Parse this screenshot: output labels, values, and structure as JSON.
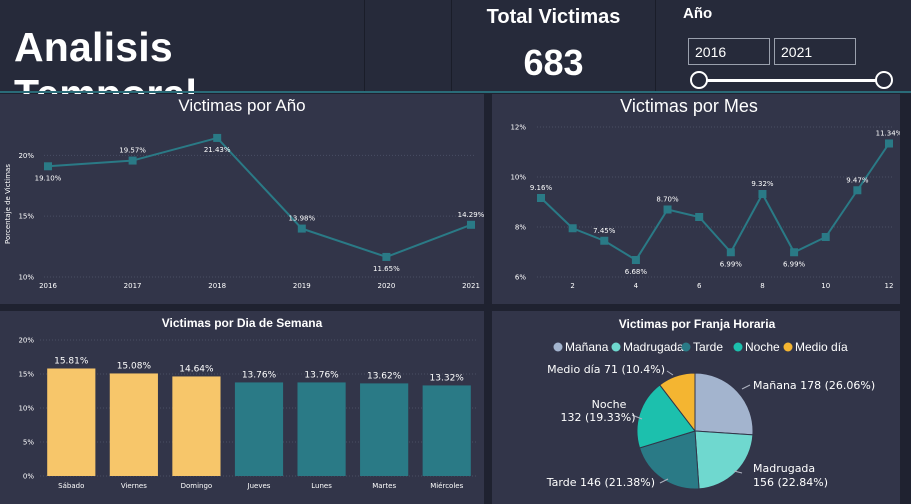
{
  "header": {
    "title": "Analisis Temporal",
    "kpi_label": "Total Victimas",
    "kpi_value": "683",
    "slicer": {
      "label": "Año",
      "from": "2016",
      "to": "2021"
    }
  },
  "charts": [
    {
      "id": "year",
      "type": "line",
      "title": "Victimas por Año",
      "ylabel": "Porcentaje de Victimas",
      "x": [
        2016,
        2017,
        2018,
        2019,
        2020,
        2021
      ],
      "values": [
        19.1,
        19.57,
        21.43,
        13.98,
        11.65,
        14.29
      ],
      "labels": [
        "19.10%",
        "19.57%",
        "21.43%",
        "13.98%",
        "11.65%",
        "14.29%"
      ],
      "label_pos": [
        "below",
        "above",
        "below",
        "above",
        "below",
        "above"
      ],
      "yticks": [
        10,
        15,
        20
      ],
      "ytick_labels": [
        "10%",
        "15%",
        "20%"
      ],
      "ylim": [
        10,
        22
      ],
      "color": "#2a7a86"
    },
    {
      "id": "month",
      "type": "line",
      "title": "Victimas por Mes",
      "x": [
        1,
        2,
        3,
        4,
        5,
        6,
        7,
        8,
        9,
        10,
        11,
        12
      ],
      "xticks": [
        2,
        4,
        6,
        8,
        10,
        12
      ],
      "values": [
        9.16,
        7.95,
        7.45,
        6.68,
        8.7,
        8.4,
        6.99,
        9.32,
        6.99,
        7.6,
        9.47,
        11.34
      ],
      "labels": [
        "9.16%",
        "",
        "7.45%",
        "6.68%",
        "8.70%",
        "",
        "6.99%",
        "9.32%",
        "6.99%",
        "",
        "9.47%",
        "11.34%"
      ],
      "label_pos": [
        "above",
        "above",
        "above",
        "below",
        "above",
        "above",
        "below",
        "above",
        "below",
        "above",
        "above",
        "above"
      ],
      "yticks": [
        6,
        8,
        10,
        12
      ],
      "ytick_labels": [
        "6%",
        "8%",
        "10%",
        "12%"
      ],
      "ylim": [
        6,
        12
      ],
      "color": "#2a7a86"
    },
    {
      "id": "weekday",
      "type": "bar",
      "title": "Victimas por Dia de Semana",
      "categories": [
        "Sábado",
        "Viernes",
        "Domingo",
        "Jueves",
        "Lunes",
        "Martes",
        "Miércoles"
      ],
      "values": [
        15.81,
        15.08,
        14.64,
        13.76,
        13.76,
        13.62,
        13.32
      ],
      "labels": [
        "15.81%",
        "15.08%",
        "14.64%",
        "13.76%",
        "13.76%",
        "13.62%",
        "13.32%"
      ],
      "colors": [
        "#f7c66a",
        "#f7c66a",
        "#f7c66a",
        "#2a7a86",
        "#2a7a86",
        "#2a7a86",
        "#2a7a86"
      ],
      "yticks": [
        0,
        5,
        10,
        15,
        20
      ],
      "ytick_labels": [
        "0%",
        "5%",
        "10%",
        "15%",
        "20%"
      ],
      "ylim": [
        0,
        20
      ]
    },
    {
      "id": "timeband",
      "type": "pie",
      "title": "Victimas por Franja Horaria",
      "slices": [
        {
          "name": "Mañana",
          "value": 178,
          "label": "Mañana 178 (26.06%)",
          "color": "#a3b4ce"
        },
        {
          "name": "Madrugada",
          "value": 156,
          "label": "Madrugada",
          "label2": "156 (22.84%)",
          "color": "#6fd8cf"
        },
        {
          "name": "Tarde",
          "value": 146,
          "label": "Tarde 146 (21.38%)",
          "color": "#2a7a86"
        },
        {
          "name": "Noche",
          "value": 132,
          "label": "Noche",
          "label2": "132 (19.33%)",
          "color": "#1cc0ad"
        },
        {
          "name": "Medio día",
          "value": 71,
          "label": "Medio día 71 (10.4%)",
          "color": "#f4b531"
        }
      ]
    }
  ]
}
